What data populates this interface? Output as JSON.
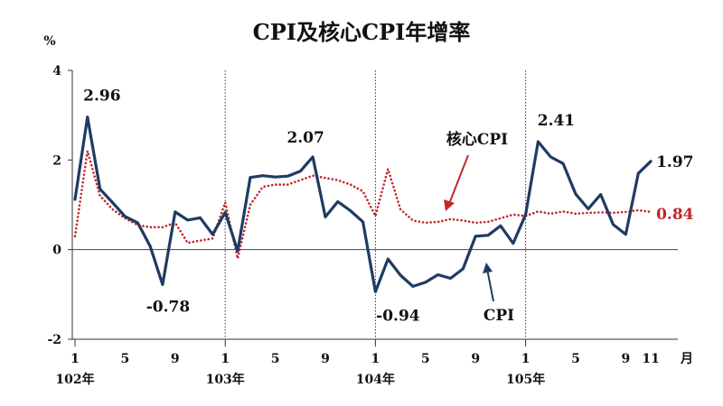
{
  "chart_data": {
    "type": "line",
    "title": "CPI及核心CPI年增率",
    "ylabel": "%",
    "ylim": [
      -2,
      4
    ],
    "yticks": [
      -2,
      0,
      2,
      4
    ],
    "x_tick_labels": [
      "1",
      "5",
      "9",
      "1",
      "5",
      "9",
      "1",
      "5",
      "9",
      "1",
      "5",
      "9",
      "11"
    ],
    "x_tick_index": [
      0,
      4,
      8,
      12,
      16,
      20,
      24,
      28,
      32,
      36,
      40,
      44,
      46
    ],
    "x_unit_label": "月",
    "year_labels": [
      "102年",
      "103年",
      "104年",
      "105年"
    ],
    "year_start_index": [
      0,
      12,
      24,
      36
    ],
    "dividers_index": [
      12,
      24,
      36
    ],
    "series": [
      {
        "name": "CPI",
        "color": "#1f3b63",
        "style": "solid",
        "values": [
          1.12,
          2.96,
          1.35,
          1.05,
          0.74,
          0.6,
          0.08,
          -0.78,
          0.84,
          0.66,
          0.71,
          0.34,
          0.83,
          -0.03,
          1.61,
          1.65,
          1.62,
          1.64,
          1.75,
          2.07,
          0.73,
          1.07,
          0.87,
          0.62,
          -0.94,
          -0.21,
          -0.57,
          -0.82,
          -0.73,
          -0.56,
          -0.64,
          -0.43,
          0.3,
          0.32,
          0.53,
          0.14,
          0.78,
          2.41,
          2.07,
          1.92,
          1.24,
          0.91,
          1.23,
          0.56,
          0.34,
          1.7,
          1.97
        ]
      },
      {
        "name": "核心CPI",
        "color": "#c0272d",
        "style": "dotted",
        "values": [
          0.3,
          2.2,
          1.2,
          0.9,
          0.7,
          0.55,
          0.5,
          0.5,
          0.6,
          0.15,
          0.2,
          0.25,
          1.05,
          -0.2,
          1.0,
          1.4,
          1.45,
          1.45,
          1.55,
          1.65,
          1.6,
          1.55,
          1.45,
          1.3,
          0.75,
          1.8,
          0.9,
          0.65,
          0.6,
          0.62,
          0.68,
          0.65,
          0.6,
          0.62,
          0.7,
          0.78,
          0.75,
          0.85,
          0.8,
          0.85,
          0.8,
          0.82,
          0.83,
          0.82,
          0.84,
          0.88,
          0.84
        ]
      }
    ],
    "data_labels": [
      {
        "series": 0,
        "index": 1,
        "text": "2.96"
      },
      {
        "series": 0,
        "index": 7,
        "text": "-0.78"
      },
      {
        "series": 0,
        "index": 19,
        "text": "2.07"
      },
      {
        "series": 0,
        "index": 24,
        "text": "-0.94"
      },
      {
        "series": 0,
        "index": 37,
        "text": "2.41"
      },
      {
        "series": 0,
        "index": 46,
        "text": "1.97"
      },
      {
        "series": 1,
        "index": 46,
        "text": "0.84"
      }
    ],
    "annotations": [
      {
        "text": "核心CPI",
        "series": 1
      },
      {
        "text": "CPI",
        "series": 0
      }
    ],
    "grid": false
  }
}
